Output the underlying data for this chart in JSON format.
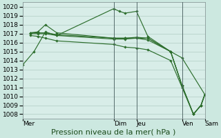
{
  "background_color": "#cce8e0",
  "plot_bg": "#d8ede8",
  "grid_color": "#b0ccC4",
  "line_color": "#2d6e2d",
  "ylim": [
    1007.5,
    1020.5
  ],
  "yticks": [
    1008,
    1009,
    1010,
    1011,
    1012,
    1013,
    1014,
    1015,
    1016,
    1017,
    1018,
    1019,
    1020
  ],
  "xlabel": "Pression niveau de la mer( hPa )",
  "figsize": [
    3.2,
    2.0
  ],
  "dpi": 100,
  "tick_fontsize": 6.5,
  "label_fontsize": 8.0,
  "xlim": [
    0,
    96
  ],
  "xtick_positions": [
    0,
    48,
    60,
    84,
    96
  ],
  "xtick_labels": [
    "Mer",
    "Dim",
    "Jeu",
    "Ven",
    "Sam"
  ],
  "vline_positions": [
    48,
    60,
    84
  ],
  "series": [
    {
      "x": [
        0,
        6,
        12,
        18,
        48,
        51,
        54,
        60,
        66,
        78,
        84,
        96
      ],
      "y": [
        1013.5,
        1015.0,
        1017.2,
        1016.8,
        1019.8,
        1019.5,
        1019.3,
        1019.5,
        1016.7,
        1015.0,
        1014.3,
        1010.2
      ]
    },
    {
      "x": [
        4,
        8,
        12,
        18,
        48,
        54,
        60,
        66,
        78,
        84,
        90,
        94,
        96
      ],
      "y": [
        1017.1,
        1017.2,
        1018.0,
        1017.1,
        1016.5,
        1016.5,
        1016.6,
        1016.5,
        1015.0,
        1011.2,
        1008.0,
        1009.0,
        1010.2
      ]
    },
    {
      "x": [
        4,
        8,
        12,
        18,
        48,
        54,
        60,
        66,
        78,
        84,
        90,
        94,
        96
      ],
      "y": [
        1017.1,
        1017.1,
        1017.1,
        1016.9,
        1016.5,
        1016.5,
        1016.5,
        1016.5,
        1015.0,
        1011.2,
        1008.0,
        1009.0,
        1010.2
      ]
    },
    {
      "x": [
        4,
        8,
        12,
        18,
        48,
        54,
        60,
        66,
        78,
        84,
        90,
        94,
        96
      ],
      "y": [
        1017.0,
        1017.0,
        1017.0,
        1016.8,
        1016.4,
        1016.4,
        1016.5,
        1016.3,
        1015.0,
        1011.2,
        1008.0,
        1009.0,
        1010.2
      ]
    },
    {
      "x": [
        4,
        8,
        12,
        18,
        48,
        54,
        60,
        66,
        78,
        84,
        90,
        94,
        96
      ],
      "y": [
        1016.8,
        1016.7,
        1016.5,
        1016.2,
        1015.8,
        1015.5,
        1015.4,
        1015.2,
        1014.0,
        1011.0,
        1008.0,
        1009.0,
        1010.2
      ]
    }
  ]
}
